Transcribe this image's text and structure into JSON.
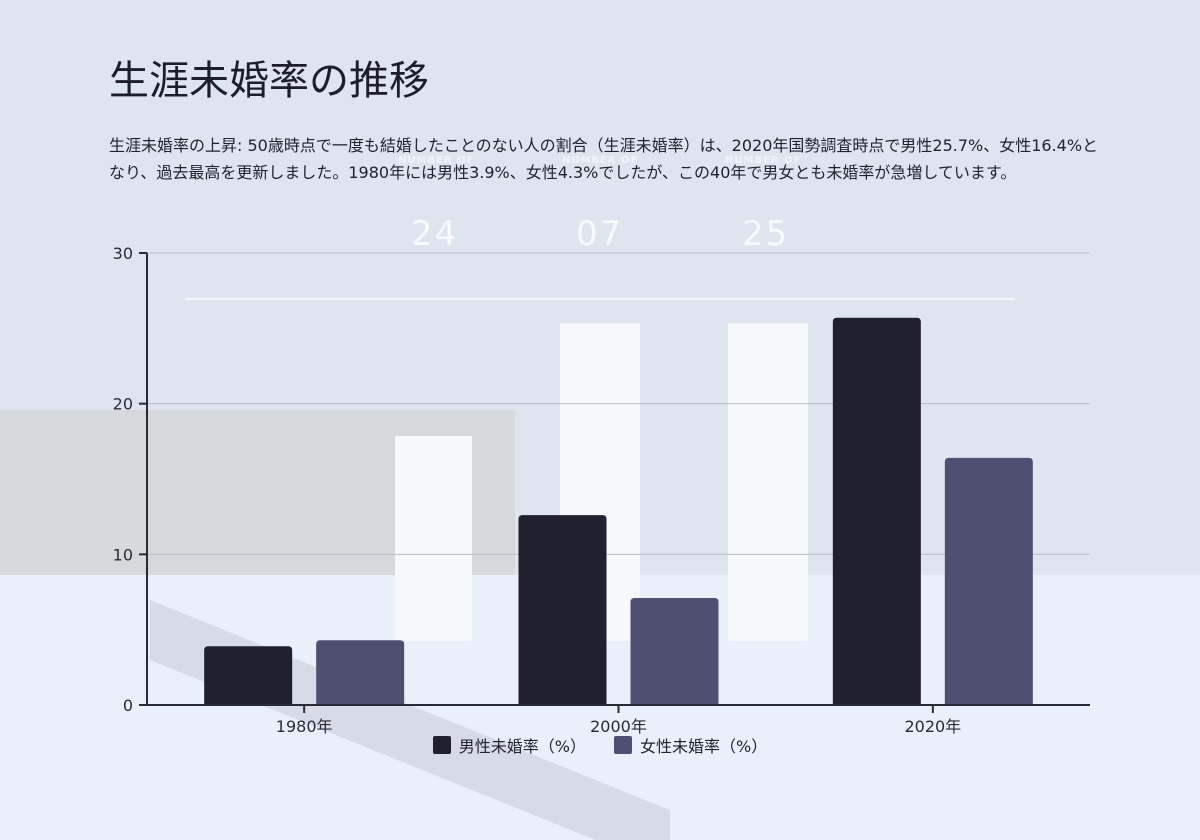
{
  "title": "生涯未婚率の推移",
  "description": "生涯未婚率の上昇: 50歳時点で一度も結婚したことのない人の割合（生涯未婚率）は、2020年国勢調査時点で男性25.7%、女性16.4%となり、過去最高を更新しました。1980年には男性3.9%、女性4.3%でしたが、この40年で男女とも未婚率が急増しています。",
  "background_numbers": [
    "24",
    "07",
    "25"
  ],
  "background_labels": [
    "NUMBER OF",
    "NUMBER OF",
    "NUMBER OF"
  ],
  "chart_data": {
    "type": "bar",
    "categories": [
      "1980年",
      "2000年",
      "2020年"
    ],
    "series": [
      {
        "name": "男性未婚率（%）",
        "values": [
          3.9,
          12.6,
          25.7
        ],
        "color": "#20202e"
      },
      {
        "name": "女性未婚率（%）",
        "values": [
          4.3,
          7.1,
          16.4
        ],
        "color": "#4f4f72"
      }
    ],
    "ylim": [
      0,
      30
    ],
    "yticks": [
      0,
      10,
      20,
      30
    ],
    "grid": true,
    "legend_position": "bottom"
  }
}
